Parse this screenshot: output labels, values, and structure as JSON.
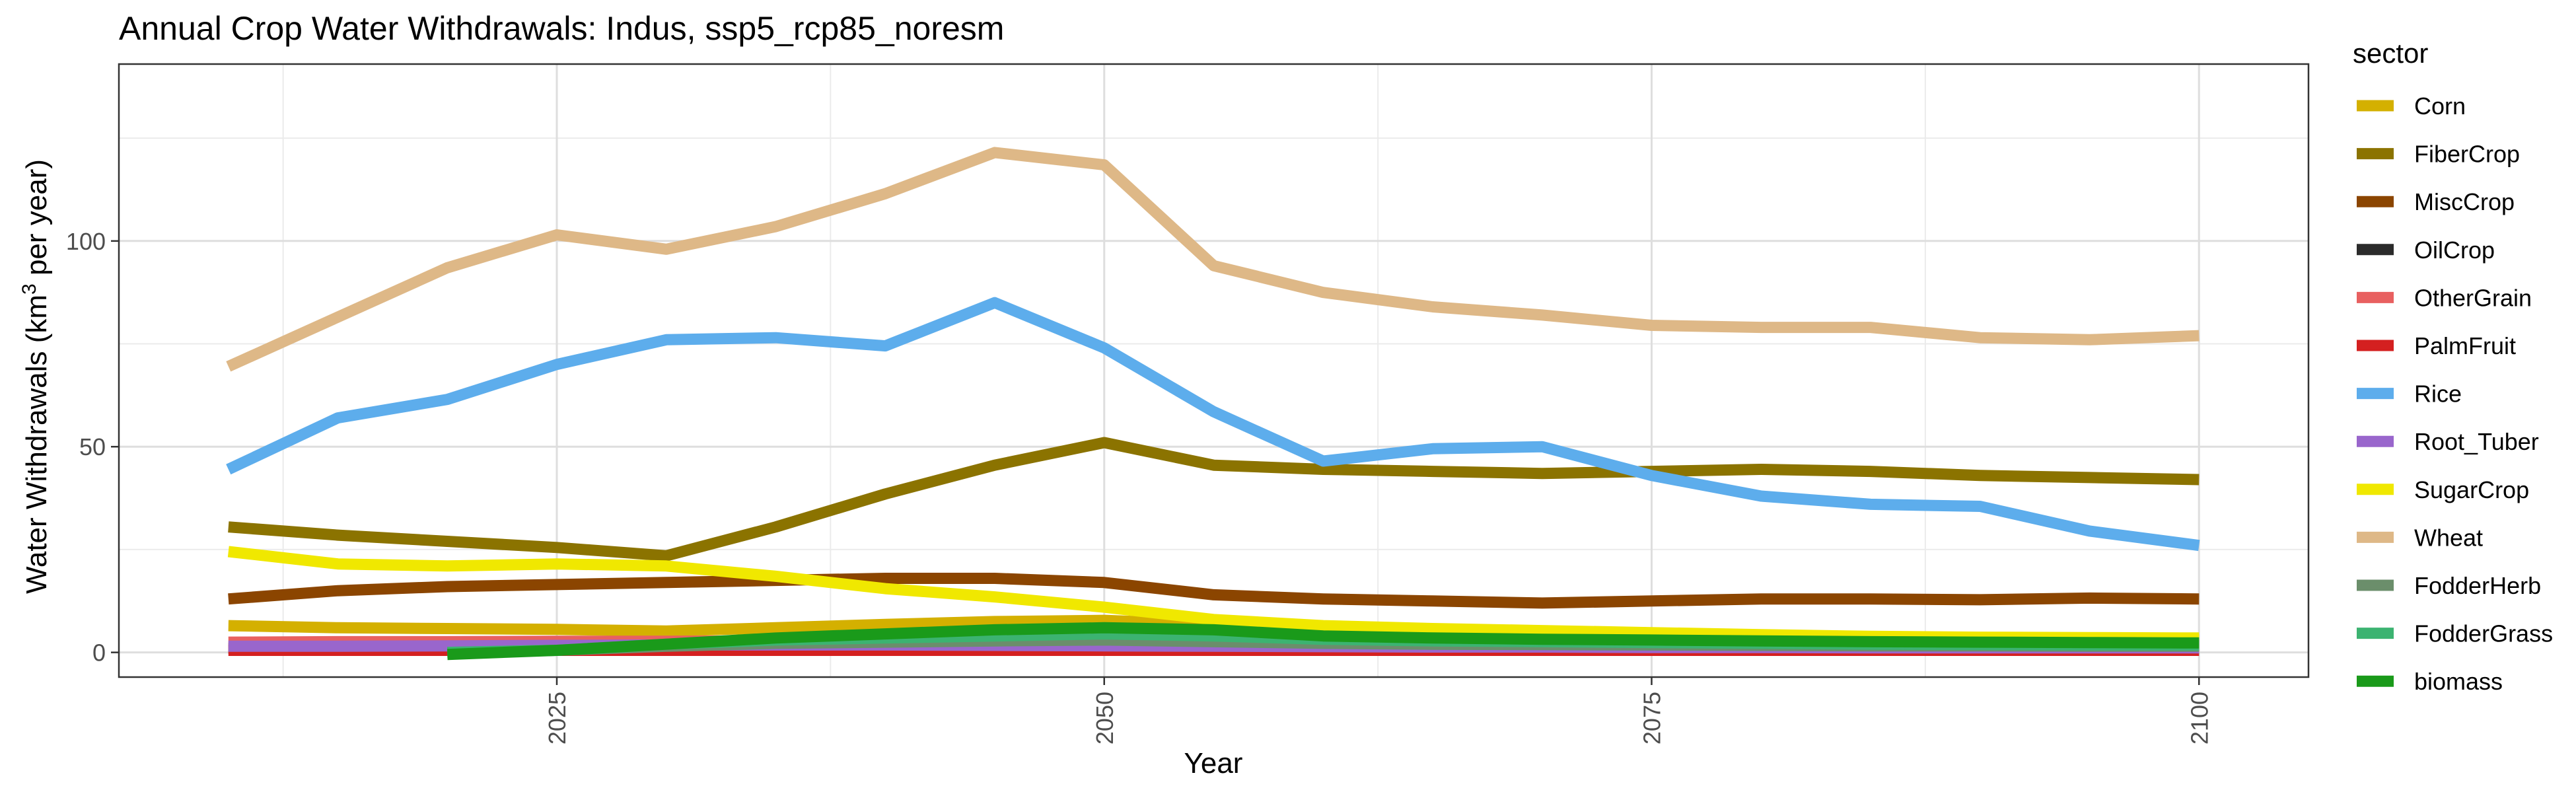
{
  "chart_data": {
    "type": "line",
    "title": "Annual Crop Water Withdrawals: Indus, ssp5_rcp85_noresm",
    "xlabel": "Year",
    "ylabel_main": "Water Withdrawals (km",
    "ylabel_sup": "3",
    "ylabel_tail": " per year)",
    "xlim": [
      2005,
      2105
    ],
    "ylim": [
      -6,
      143
    ],
    "x_ticks": [
      2025,
      2050,
      2075,
      2100
    ],
    "y_ticks": [
      0,
      50,
      100
    ],
    "grid": true,
    "legend_position": "right",
    "legend_title": "sector",
    "series": [
      {
        "name": "Corn",
        "color": "#D4B000",
        "x": [
          2010,
          2015,
          2020,
          2025,
          2030,
          2035,
          2040,
          2045,
          2050,
          2055,
          2060,
          2065,
          2070,
          2075,
          2080,
          2085,
          2090,
          2095,
          2100
        ],
        "y": [
          6.5,
          6.0,
          5.8,
          5.6,
          5.2,
          6.0,
          6.8,
          7.5,
          7.8,
          6.8,
          5.8,
          5.2,
          4.8,
          4.5,
          4.0,
          3.6,
          3.4,
          3.2,
          3.0
        ]
      },
      {
        "name": "FiberCrop",
        "color": "#8B7300",
        "x": [
          2010,
          2015,
          2020,
          2025,
          2030,
          2035,
          2040,
          2045,
          2050,
          2055,
          2060,
          2065,
          2070,
          2075,
          2080,
          2085,
          2090,
          2095,
          2100
        ],
        "y": [
          30.5,
          28.5,
          27.0,
          25.5,
          23.5,
          30.5,
          38.5,
          45.5,
          51.0,
          45.5,
          44.5,
          44.0,
          43.5,
          44.0,
          44.5,
          44.0,
          43.0,
          42.5,
          42.0
        ]
      },
      {
        "name": "MiscCrop",
        "color": "#8B4500",
        "x": [
          2010,
          2015,
          2020,
          2025,
          2030,
          2035,
          2040,
          2045,
          2050,
          2055,
          2060,
          2065,
          2070,
          2075,
          2080,
          2085,
          2090,
          2095,
          2100
        ],
        "y": [
          13.0,
          15.0,
          16.0,
          16.5,
          17.0,
          17.5,
          18.0,
          18.0,
          17.0,
          14.0,
          13.0,
          12.5,
          12.0,
          12.5,
          13.0,
          13.0,
          12.8,
          13.2,
          13.0
        ]
      },
      {
        "name": "OilCrop",
        "color": "#2B2B2B",
        "x": [
          2010,
          2015,
          2020,
          2025,
          2030,
          2035,
          2040,
          2045,
          2050,
          2055,
          2060,
          2065,
          2070,
          2075,
          2080,
          2085,
          2090,
          2095,
          2100
        ],
        "y": [
          1.0,
          1.0,
          1.0,
          1.0,
          1.0,
          1.0,
          1.0,
          1.0,
          1.0,
          1.0,
          1.0,
          1.0,
          1.0,
          1.0,
          1.0,
          1.0,
          1.0,
          1.0,
          1.0
        ]
      },
      {
        "name": "OtherGrain",
        "color": "#E86060",
        "x": [
          2010,
          2015,
          2020,
          2025,
          2030,
          2035,
          2040,
          2045,
          2050,
          2055,
          2060,
          2065,
          2070,
          2075,
          2080,
          2085,
          2090,
          2095,
          2100
        ],
        "y": [
          2.5,
          2.6,
          2.6,
          2.7,
          2.7,
          2.8,
          2.8,
          2.9,
          2.8,
          2.6,
          2.4,
          2.3,
          2.2,
          2.1,
          2.0,
          1.9,
          1.8,
          1.8,
          1.8
        ]
      },
      {
        "name": "PalmFruit",
        "color": "#D42020",
        "x": [
          2010,
          2015,
          2020,
          2025,
          2030,
          2035,
          2040,
          2045,
          2050,
          2055,
          2060,
          2065,
          2070,
          2075,
          2080,
          2085,
          2090,
          2095,
          2100
        ],
        "y": [
          0.5,
          0.5,
          0.5,
          0.5,
          0.5,
          0.5,
          0.5,
          0.5,
          0.5,
          0.5,
          0.5,
          0.5,
          0.5,
          0.5,
          0.5,
          0.5,
          0.5,
          0.5,
          0.5
        ]
      },
      {
        "name": "Rice",
        "color": "#5DADEC",
        "x": [
          2010,
          2015,
          2020,
          2025,
          2030,
          2035,
          2040,
          2045,
          2050,
          2055,
          2060,
          2065,
          2070,
          2075,
          2080,
          2085,
          2090,
          2095,
          2100
        ],
        "y": [
          44.5,
          57.0,
          61.5,
          70.0,
          76.0,
          76.5,
          74.5,
          85.0,
          74.0,
          58.5,
          46.5,
          49.5,
          50.0,
          43.0,
          38.0,
          36.0,
          35.5,
          29.5,
          26.0
        ]
      },
      {
        "name": "Root_Tuber",
        "color": "#9966CC",
        "x": [
          2010,
          2015,
          2020,
          2025,
          2030,
          2035,
          2040,
          2045,
          2050,
          2055,
          2060,
          2065,
          2070,
          2075,
          2080,
          2085,
          2090,
          2095,
          2100
        ],
        "y": [
          1.5,
          1.5,
          1.6,
          1.7,
          1.8,
          1.8,
          1.8,
          1.7,
          1.6,
          1.5,
          1.4,
          1.3,
          1.3,
          1.2,
          1.2,
          1.1,
          1.1,
          1.1,
          1.1
        ]
      },
      {
        "name": "SugarCrop",
        "color": "#F0E800",
        "x": [
          2010,
          2015,
          2020,
          2025,
          2030,
          2035,
          2040,
          2045,
          2050,
          2055,
          2060,
          2065,
          2070,
          2075,
          2080,
          2085,
          2090,
          2095,
          2100
        ],
        "y": [
          24.5,
          21.5,
          21.0,
          21.5,
          21.0,
          18.5,
          15.5,
          13.5,
          11.0,
          8.0,
          6.5,
          5.8,
          5.3,
          4.8,
          4.3,
          3.9,
          3.7,
          3.6,
          3.5
        ]
      },
      {
        "name": "Wheat",
        "color": "#DEB887",
        "x": [
          2010,
          2015,
          2020,
          2025,
          2030,
          2035,
          2040,
          2045,
          2050,
          2055,
          2060,
          2065,
          2070,
          2075,
          2080,
          2085,
          2090,
          2095,
          2100
        ],
        "y": [
          69.5,
          81.5,
          93.5,
          101.5,
          98.0,
          103.5,
          111.5,
          121.5,
          118.5,
          94.0,
          87.5,
          84.0,
          82.0,
          79.5,
          79.0,
          79.0,
          76.5,
          76.0,
          77.0
        ]
      },
      {
        "name": "FodderHerb",
        "color": "#6B8E6B",
        "x": [
          2020,
          2025,
          2030,
          2035,
          2040,
          2045,
          2050,
          2055,
          2060,
          2065,
          2070,
          2075,
          2080,
          2085,
          2090,
          2095,
          2100
        ],
        "y": [
          0.0,
          0.5,
          1.5,
          2.2,
          2.5,
          2.8,
          3.0,
          2.6,
          2.2,
          2.0,
          1.9,
          1.8,
          1.7,
          1.6,
          1.6,
          1.5,
          1.5
        ]
      },
      {
        "name": "FodderGrass",
        "color": "#3CB371",
        "x": [
          2020,
          2025,
          2030,
          2035,
          2040,
          2045,
          2050,
          2055,
          2060,
          2065,
          2070,
          2075,
          2080,
          2085,
          2090,
          2095,
          2100
        ],
        "y": [
          0.0,
          0.5,
          2.0,
          3.0,
          3.5,
          4.0,
          4.5,
          4.0,
          3.2,
          2.8,
          2.6,
          2.4,
          2.2,
          2.0,
          1.9,
          1.8,
          1.8
        ]
      },
      {
        "name": "biomass",
        "color": "#1A9A1A",
        "x": [
          2020,
          2025,
          2030,
          2035,
          2040,
          2045,
          2050,
          2055,
          2060,
          2065,
          2070,
          2075,
          2080,
          2085,
          2090,
          2095,
          2100
        ],
        "y": [
          -0.5,
          0.5,
          2.0,
          3.5,
          4.5,
          5.5,
          6.0,
          5.5,
          4.0,
          3.5,
          3.2,
          3.0,
          2.8,
          2.6,
          2.5,
          2.4,
          2.3
        ]
      }
    ]
  }
}
